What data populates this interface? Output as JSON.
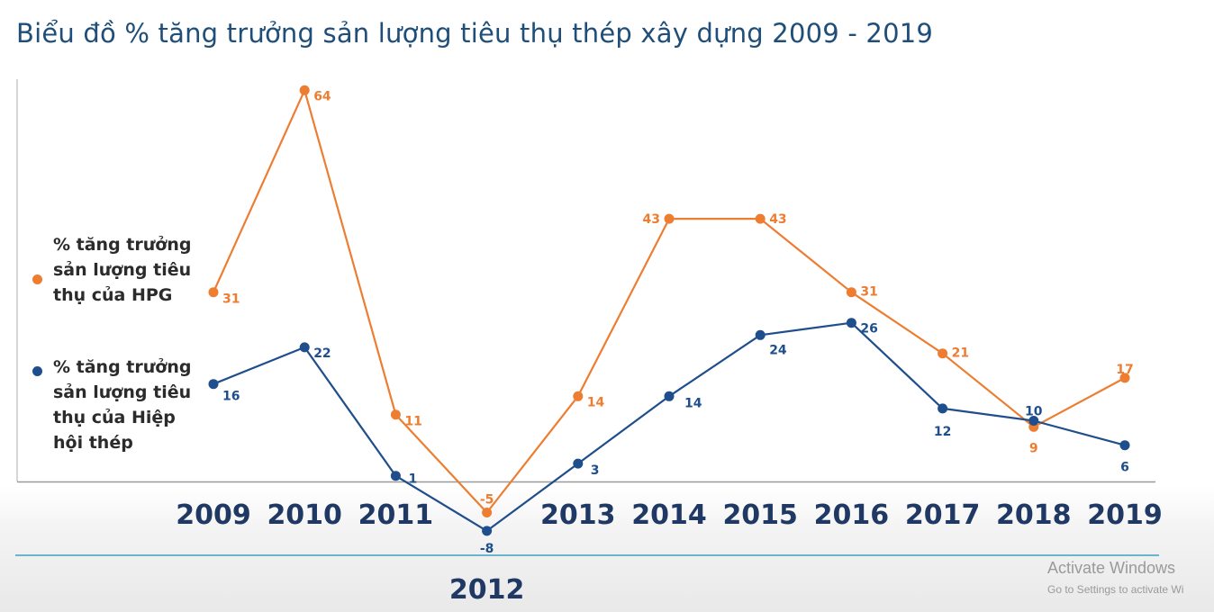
{
  "title": "Biểu đồ % tăng trưởng sản lượng tiêu thụ thép xây dựng 2009 - 2019",
  "legend": {
    "hpg": "% tăng trưởng sản lượng tiêu thụ của HPG",
    "vsa": "% tăng trưởng sản lượng tiêu thụ của Hiệp hội thép"
  },
  "chart_data": {
    "type": "line",
    "title": "Biểu đồ % tăng trưởng sản lượng tiêu thụ thép xây dựng 2009 - 2019",
    "x": [
      "2009",
      "2010",
      "2011",
      "2012",
      "2013",
      "2014",
      "2015",
      "2016",
      "2017",
      "2018",
      "2019"
    ],
    "series": [
      {
        "name": "% tăng trưởng sản lượng tiêu thụ của HPG",
        "color": "#ed7d31",
        "values": [
          31,
          64,
          11,
          -5,
          14,
          43,
          43,
          31,
          21,
          9,
          17
        ]
      },
      {
        "name": "% tăng trưởng sản lượng tiêu thụ của Hiệp hội thép",
        "color": "#1f4e8c",
        "values": [
          16,
          22,
          1,
          -8,
          3,
          14,
          24,
          26,
          12,
          10,
          6
        ]
      }
    ],
    "xlabel": "",
    "ylabel": "",
    "ylim": [
      -10,
      65
    ],
    "grid": false,
    "legend_position": "left"
  },
  "watermark": {
    "title": "Activate Windows",
    "subtitle": "Go to Settings to activate Wi"
  }
}
